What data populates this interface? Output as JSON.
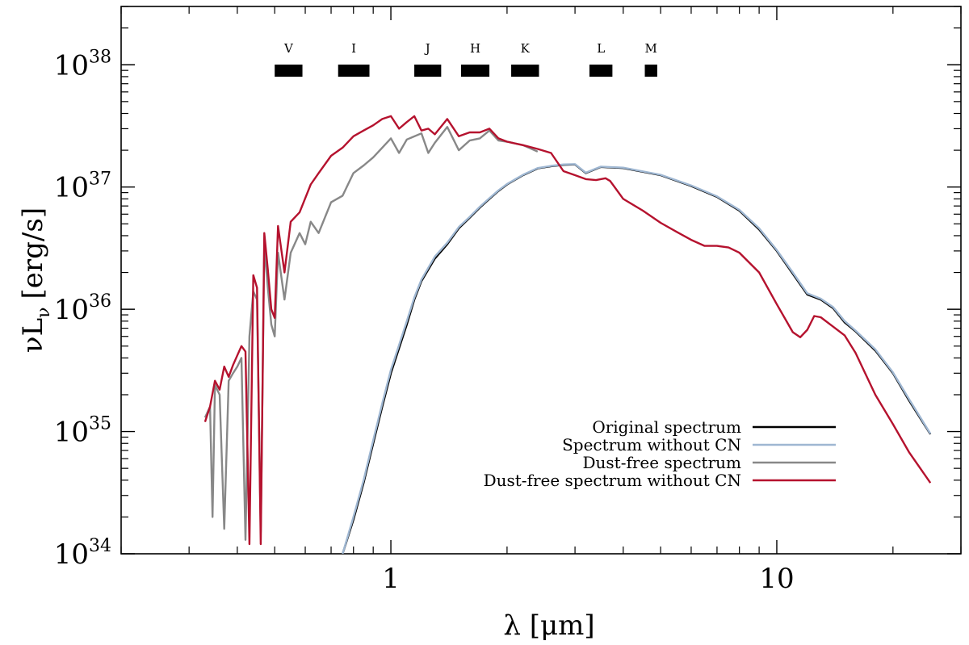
{
  "chart_data": {
    "type": "line",
    "xlabel": "λ [μm]",
    "ylabel_main": "νL",
    "ylabel_sub": "ν",
    "ylabel_unit": "[erg/s]",
    "x_scale": "log",
    "y_scale": "log",
    "xlim": [
      0.2,
      30
    ],
    "ylim": [
      1e+34,
      3e+38
    ],
    "x_major_ticks": [
      {
        "value": 1,
        "label": "1"
      },
      {
        "value": 10,
        "label": "10"
      }
    ],
    "y_major_ticks": [
      {
        "value": 1e+34,
        "base": "10",
        "exp": "34"
      },
      {
        "value": 1e+35,
        "base": "10",
        "exp": "35"
      },
      {
        "value": 1e+36,
        "base": "10",
        "exp": "36"
      },
      {
        "value": 1e+37,
        "base": "10",
        "exp": "37"
      },
      {
        "value": 1e+38,
        "base": "10",
        "exp": "38"
      }
    ],
    "bands": [
      {
        "label": "V",
        "start": 0.5,
        "end": 0.59
      },
      {
        "label": "I",
        "start": 0.73,
        "end": 0.88
      },
      {
        "label": "J",
        "start": 1.15,
        "end": 1.35
      },
      {
        "label": "H",
        "start": 1.52,
        "end": 1.8
      },
      {
        "label": "K",
        "start": 2.05,
        "end": 2.42
      },
      {
        "label": "L",
        "start": 3.27,
        "end": 3.75
      },
      {
        "label": "M",
        "start": 4.55,
        "end": 4.9
      }
    ],
    "legend_position": "bottom-right",
    "series": [
      {
        "name": "Original spectrum",
        "color": "#000000",
        "points": [
          [
            0.75,
            1e+34
          ],
          [
            0.8,
            1.9e+34
          ],
          [
            0.85,
            3.8e+34
          ],
          [
            0.9,
            8e+34
          ],
          [
            0.95,
            1.6e+35
          ],
          [
            1.0,
            3e+35
          ],
          [
            1.05,
            4.8e+35
          ],
          [
            1.1,
            7.5e+35
          ],
          [
            1.15,
            1.2e+36
          ],
          [
            1.2,
            1.7e+36
          ],
          [
            1.3,
            2.6e+36
          ],
          [
            1.4,
            3.4e+36
          ],
          [
            1.5,
            4.6e+36
          ],
          [
            1.6,
            5.6e+36
          ],
          [
            1.7,
            6.8e+36
          ],
          [
            1.8,
            8e+36
          ],
          [
            1.9,
            9.3e+36
          ],
          [
            2.0,
            1.05e+37
          ],
          [
            2.2,
            1.25e+37
          ],
          [
            2.4,
            1.42e+37
          ],
          [
            2.6,
            1.48e+37
          ],
          [
            2.8,
            1.52e+37
          ],
          [
            3.0,
            1.53e+37
          ],
          [
            3.2,
            1.3e+37
          ],
          [
            3.5,
            1.46e+37
          ],
          [
            4.0,
            1.43e+37
          ],
          [
            5.0,
            1.25e+37
          ],
          [
            6.0,
            1.02e+37
          ],
          [
            7.0,
            8.3e+36
          ],
          [
            8.0,
            6.4e+36
          ],
          [
            9.0,
            4.5e+36
          ],
          [
            10.0,
            3e+36
          ],
          [
            11.0,
            1.95e+36
          ],
          [
            12.0,
            1.32e+36
          ],
          [
            13.0,
            1.2e+36
          ],
          [
            14.0,
            1.02e+36
          ],
          [
            15.0,
            7.8e+35
          ],
          [
            16.0,
            6.6e+35
          ],
          [
            18.0,
            4.6e+35
          ],
          [
            20.0,
            3e+35
          ],
          [
            22.0,
            1.8e+35
          ],
          [
            25.0,
            9.5e+34
          ]
        ]
      },
      {
        "name": "Spectrum without CN",
        "color": "#9fb7d2",
        "points": [
          [
            0.75,
            1e+34
          ],
          [
            0.8,
            2e+34
          ],
          [
            0.85,
            4e+34
          ],
          [
            0.9,
            8.5e+34
          ],
          [
            0.95,
            1.7e+35
          ],
          [
            1.0,
            3.2e+35
          ],
          [
            1.05,
            5.1e+35
          ],
          [
            1.1,
            8e+35
          ],
          [
            1.15,
            1.25e+36
          ],
          [
            1.2,
            1.75e+36
          ],
          [
            1.3,
            2.7e+36
          ],
          [
            1.4,
            3.5e+36
          ],
          [
            1.5,
            4.7e+36
          ],
          [
            1.6,
            5.7e+36
          ],
          [
            1.7,
            6.9e+36
          ],
          [
            1.8,
            8.1e+36
          ],
          [
            1.9,
            9.4e+36
          ],
          [
            2.0,
            1.06e+37
          ],
          [
            2.2,
            1.26e+37
          ],
          [
            2.4,
            1.43e+37
          ],
          [
            2.6,
            1.49e+37
          ],
          [
            2.8,
            1.53e+37
          ],
          [
            3.0,
            1.54e+37
          ],
          [
            3.2,
            1.31e+37
          ],
          [
            3.5,
            1.47e+37
          ],
          [
            4.0,
            1.44e+37
          ],
          [
            5.0,
            1.26e+37
          ],
          [
            6.0,
            1.03e+37
          ],
          [
            7.0,
            8.4e+36
          ],
          [
            8.0,
            6.5e+36
          ],
          [
            9.0,
            4.6e+36
          ],
          [
            10.0,
            3.05e+36
          ],
          [
            11.0,
            2e+36
          ],
          [
            12.0,
            1.35e+36
          ],
          [
            13.0,
            1.22e+36
          ],
          [
            14.0,
            1.04e+36
          ],
          [
            15.0,
            8e+35
          ],
          [
            16.0,
            6.7e+35
          ],
          [
            18.0,
            4.7e+35
          ],
          [
            20.0,
            3.05e+35
          ],
          [
            22.0,
            1.85e+35
          ],
          [
            25.0,
            9.6e+34
          ]
        ]
      },
      {
        "name": "Dust-free spectrum",
        "color": "#888888",
        "points": [
          [
            0.33,
            1.3e+35
          ],
          [
            0.34,
            1.6e+35
          ],
          [
            0.345,
            2e+34
          ],
          [
            0.35,
            2.4e+35
          ],
          [
            0.36,
            2e+35
          ],
          [
            0.37,
            1.6e+34
          ],
          [
            0.38,
            2.6e+35
          ],
          [
            0.39,
            3e+35
          ],
          [
            0.4,
            3.4e+35
          ],
          [
            0.41,
            4e+35
          ],
          [
            0.42,
            1.3e+34
          ],
          [
            0.43,
            6e+35
          ],
          [
            0.44,
            1.4e+36
          ],
          [
            0.45,
            1.2e+36
          ],
          [
            0.46,
            1.5e+34
          ],
          [
            0.47,
            3.3e+36
          ],
          [
            0.48,
            1.5e+36
          ],
          [
            0.49,
            7.5e+35
          ],
          [
            0.5,
            6e+35
          ],
          [
            0.51,
            2.9e+36
          ],
          [
            0.53,
            1.2e+36
          ],
          [
            0.55,
            2.9e+36
          ],
          [
            0.58,
            4.2e+36
          ],
          [
            0.6,
            3.4e+36
          ],
          [
            0.62,
            5.2e+36
          ],
          [
            0.65,
            4.2e+36
          ],
          [
            0.7,
            7.5e+36
          ],
          [
            0.75,
            8.5e+36
          ],
          [
            0.8,
            1.3e+37
          ],
          [
            0.85,
            1.5e+37
          ],
          [
            0.9,
            1.75e+37
          ],
          [
            0.95,
            2.1e+37
          ],
          [
            1.0,
            2.5e+37
          ],
          [
            1.05,
            1.9e+37
          ],
          [
            1.1,
            2.45e+37
          ],
          [
            1.2,
            2.75e+37
          ],
          [
            1.25,
            1.9e+37
          ],
          [
            1.3,
            2.3e+37
          ],
          [
            1.4,
            3.1e+37
          ],
          [
            1.5,
            2e+37
          ],
          [
            1.6,
            2.4e+37
          ],
          [
            1.7,
            2.5e+37
          ],
          [
            1.8,
            2.9e+37
          ],
          [
            1.9,
            2.4e+37
          ],
          [
            2.0,
            2.35e+37
          ],
          [
            2.2,
            2.2e+37
          ],
          [
            2.4,
            1.95e+37
          ]
        ]
      },
      {
        "name": "Dust-free spectrum without CN",
        "color": "#b5122e",
        "points": [
          [
            0.33,
            1.2e+35
          ],
          [
            0.34,
            1.6e+35
          ],
          [
            0.35,
            2.6e+35
          ],
          [
            0.36,
            2.2e+35
          ],
          [
            0.37,
            3.4e+35
          ],
          [
            0.38,
            2.8e+35
          ],
          [
            0.39,
            3.5e+35
          ],
          [
            0.4,
            4.2e+35
          ],
          [
            0.41,
            5e+35
          ],
          [
            0.42,
            4.5e+35
          ],
          [
            0.43,
            1.2e+34
          ],
          [
            0.44,
            1.9e+36
          ],
          [
            0.45,
            1.5e+36
          ],
          [
            0.46,
            1.2e+34
          ],
          [
            0.47,
            4.2e+36
          ],
          [
            0.48,
            2.1e+36
          ],
          [
            0.49,
            1e+36
          ],
          [
            0.5,
            8.5e+35
          ],
          [
            0.51,
            4.8e+36
          ],
          [
            0.53,
            2e+36
          ],
          [
            0.55,
            5.2e+36
          ],
          [
            0.58,
            6.2e+36
          ],
          [
            0.62,
            1.05e+37
          ],
          [
            0.65,
            1.3e+37
          ],
          [
            0.7,
            1.8e+37
          ],
          [
            0.75,
            2.1e+37
          ],
          [
            0.8,
            2.6e+37
          ],
          [
            0.85,
            2.9e+37
          ],
          [
            0.9,
            3.2e+37
          ],
          [
            0.95,
            3.6e+37
          ],
          [
            1.0,
            3.8e+37
          ],
          [
            1.05,
            3e+37
          ],
          [
            1.1,
            3.4e+37
          ],
          [
            1.15,
            3.8e+37
          ],
          [
            1.2,
            2.9e+37
          ],
          [
            1.25,
            3e+37
          ],
          [
            1.3,
            2.7e+37
          ],
          [
            1.4,
            3.6e+37
          ],
          [
            1.5,
            2.6e+37
          ],
          [
            1.6,
            2.8e+37
          ],
          [
            1.7,
            2.8e+37
          ],
          [
            1.8,
            3e+37
          ],
          [
            1.9,
            2.5e+37
          ],
          [
            2.0,
            2.35e+37
          ],
          [
            2.2,
            2.2e+37
          ],
          [
            2.4,
            2.05e+37
          ],
          [
            2.6,
            1.9e+37
          ],
          [
            2.8,
            1.35e+37
          ],
          [
            3.0,
            1.25e+37
          ],
          [
            3.2,
            1.16e+37
          ],
          [
            3.4,
            1.14e+37
          ],
          [
            3.6,
            1.18e+37
          ],
          [
            3.7,
            1.12e+37
          ],
          [
            4.0,
            8e+36
          ],
          [
            4.5,
            6.4e+36
          ],
          [
            5.0,
            5.1e+36
          ],
          [
            5.5,
            4.3e+36
          ],
          [
            6.0,
            3.7e+36
          ],
          [
            6.5,
            3.3e+36
          ],
          [
            7.0,
            3.3e+36
          ],
          [
            7.5,
            3.2e+36
          ],
          [
            8.0,
            2.9e+36
          ],
          [
            9.0,
            2e+36
          ],
          [
            10.0,
            1.1e+36
          ],
          [
            11.0,
            6.5e+35
          ],
          [
            11.5,
            5.9e+35
          ],
          [
            12.0,
            6.8e+35
          ],
          [
            12.5,
            8.8e+35
          ],
          [
            13.0,
            8.6e+35
          ],
          [
            14.0,
            7.2e+35
          ],
          [
            15.0,
            6.1e+35
          ],
          [
            16.0,
            4.4e+35
          ],
          [
            18.0,
            2e+35
          ],
          [
            20.0,
            1.15e+35
          ],
          [
            22.0,
            6.8e+34
          ],
          [
            25.0,
            3.8e+34
          ]
        ]
      }
    ]
  }
}
